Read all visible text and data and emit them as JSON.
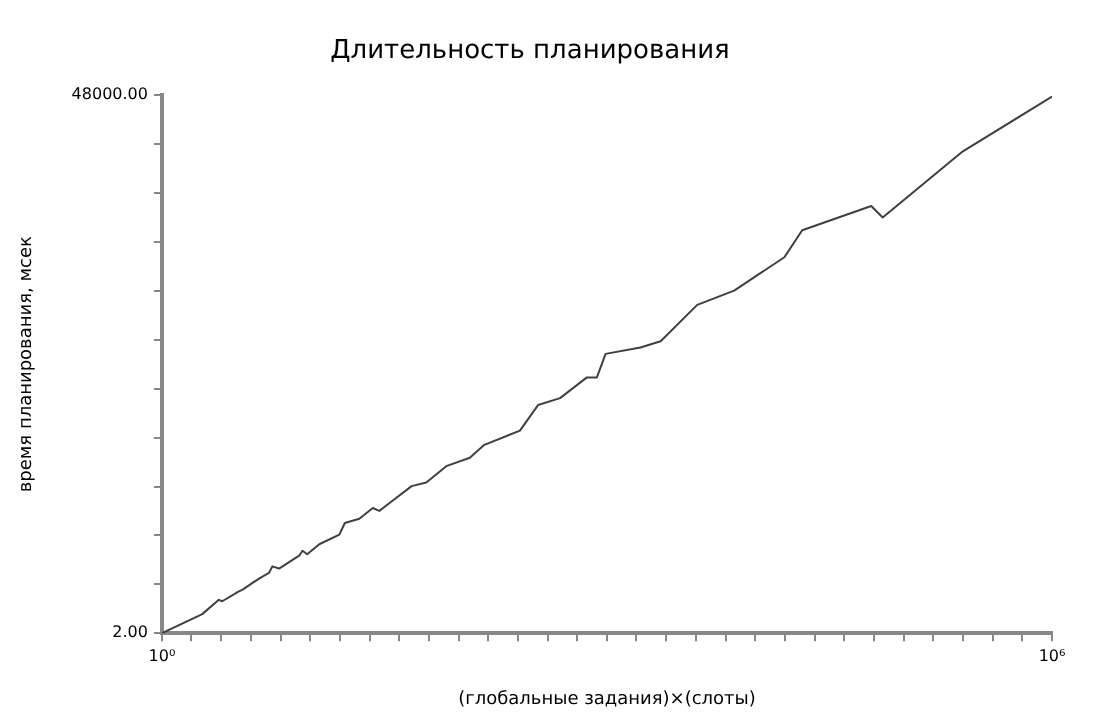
{
  "chart_data": {
    "type": "line",
    "title": "Длительность планирования",
    "xlabel": "(глобальные задания)×(слоты)",
    "ylabel": "время планирования, мсек",
    "log": "xy",
    "color": "#404040",
    "marker": "none",
    "line_style": "solid",
    "xlim": [
      1,
      1000000
    ],
    "ylim": [
      2,
      48000
    ],
    "xticks": [
      {
        "value": 1,
        "label": "10⁰"
      },
      {
        "value": 1.58,
        "label": null
      },
      {
        "value": 2.51,
        "label": null
      },
      {
        "value": 3.98,
        "label": null
      },
      {
        "value": 6.31,
        "label": null
      },
      {
        "value": 10,
        "label": null
      },
      {
        "value": 15.8,
        "label": null
      },
      {
        "value": 25.1,
        "label": null
      },
      {
        "value": 39.8,
        "label": null
      },
      {
        "value": 63.1,
        "label": null
      },
      {
        "value": 100,
        "label": null
      },
      {
        "value": 158,
        "label": null
      },
      {
        "value": 251,
        "label": null
      },
      {
        "value": 398,
        "label": null
      },
      {
        "value": 631,
        "label": null
      },
      {
        "value": 1000,
        "label": null
      },
      {
        "value": 1580,
        "label": null
      },
      {
        "value": 2510,
        "label": null
      },
      {
        "value": 3980,
        "label": null
      },
      {
        "value": 6310,
        "label": null
      },
      {
        "value": 10000,
        "label": null
      },
      {
        "value": 15800,
        "label": null
      },
      {
        "value": 25100,
        "label": null
      },
      {
        "value": 39800,
        "label": null
      },
      {
        "value": 63100,
        "label": null
      },
      {
        "value": 100000,
        "label": null
      },
      {
        "value": 158000,
        "label": null
      },
      {
        "value": 251000,
        "label": null
      },
      {
        "value": 398000,
        "label": null
      },
      {
        "value": 631000,
        "label": null
      },
      {
        "value": 1000000,
        "label": "10⁶"
      }
    ],
    "yticks": [
      {
        "value": 2,
        "label": "2.00"
      },
      {
        "value": 5,
        "label": null
      },
      {
        "value": 12.5,
        "label": null
      },
      {
        "value": 31,
        "label": null
      },
      {
        "value": 78,
        "label": null
      },
      {
        "value": 195,
        "label": null
      },
      {
        "value": 490,
        "label": null
      },
      {
        "value": 1220,
        "label": null
      },
      {
        "value": 3050,
        "label": null
      },
      {
        "value": 7630,
        "label": null
      },
      {
        "value": 19100,
        "label": null
      },
      {
        "value": 48000,
        "label": "48000.00"
      }
    ],
    "x": [
      1,
      1.87,
      2.42,
      2.55,
      3.3,
      3.48,
      4.51,
      5.27,
      5.55,
      6.16,
      8.41,
      8.86,
      9.53,
      11.5,
      15.7,
      17.1,
      21.4,
      26.4,
      29.2,
      36,
      48.2,
      60.5,
      82.6,
      119,
      149,
      259,
      343,
      483,
      732,
      855,
      979,
      1680,
      2300,
      4060,
      7200,
      15700,
      20700,
      60500,
      72200,
      246000,
      1000000
    ],
    "values": [
      2,
      2.86,
      3.74,
      3.64,
      4.38,
      4.51,
      5.57,
      6.21,
      7,
      6.72,
      8.55,
      9.38,
      8.78,
      10.6,
      12.7,
      15.8,
      17.1,
      20.9,
      19.8,
      24.1,
      31.5,
      33.7,
      45.8,
      53.7,
      68.3,
      89.1,
      144,
      164,
      242,
      242,
      376,
      424,
      477,
      942,
      1230,
      2300,
      3820,
      6010,
      4850,
      16500,
      46800
    ]
  }
}
